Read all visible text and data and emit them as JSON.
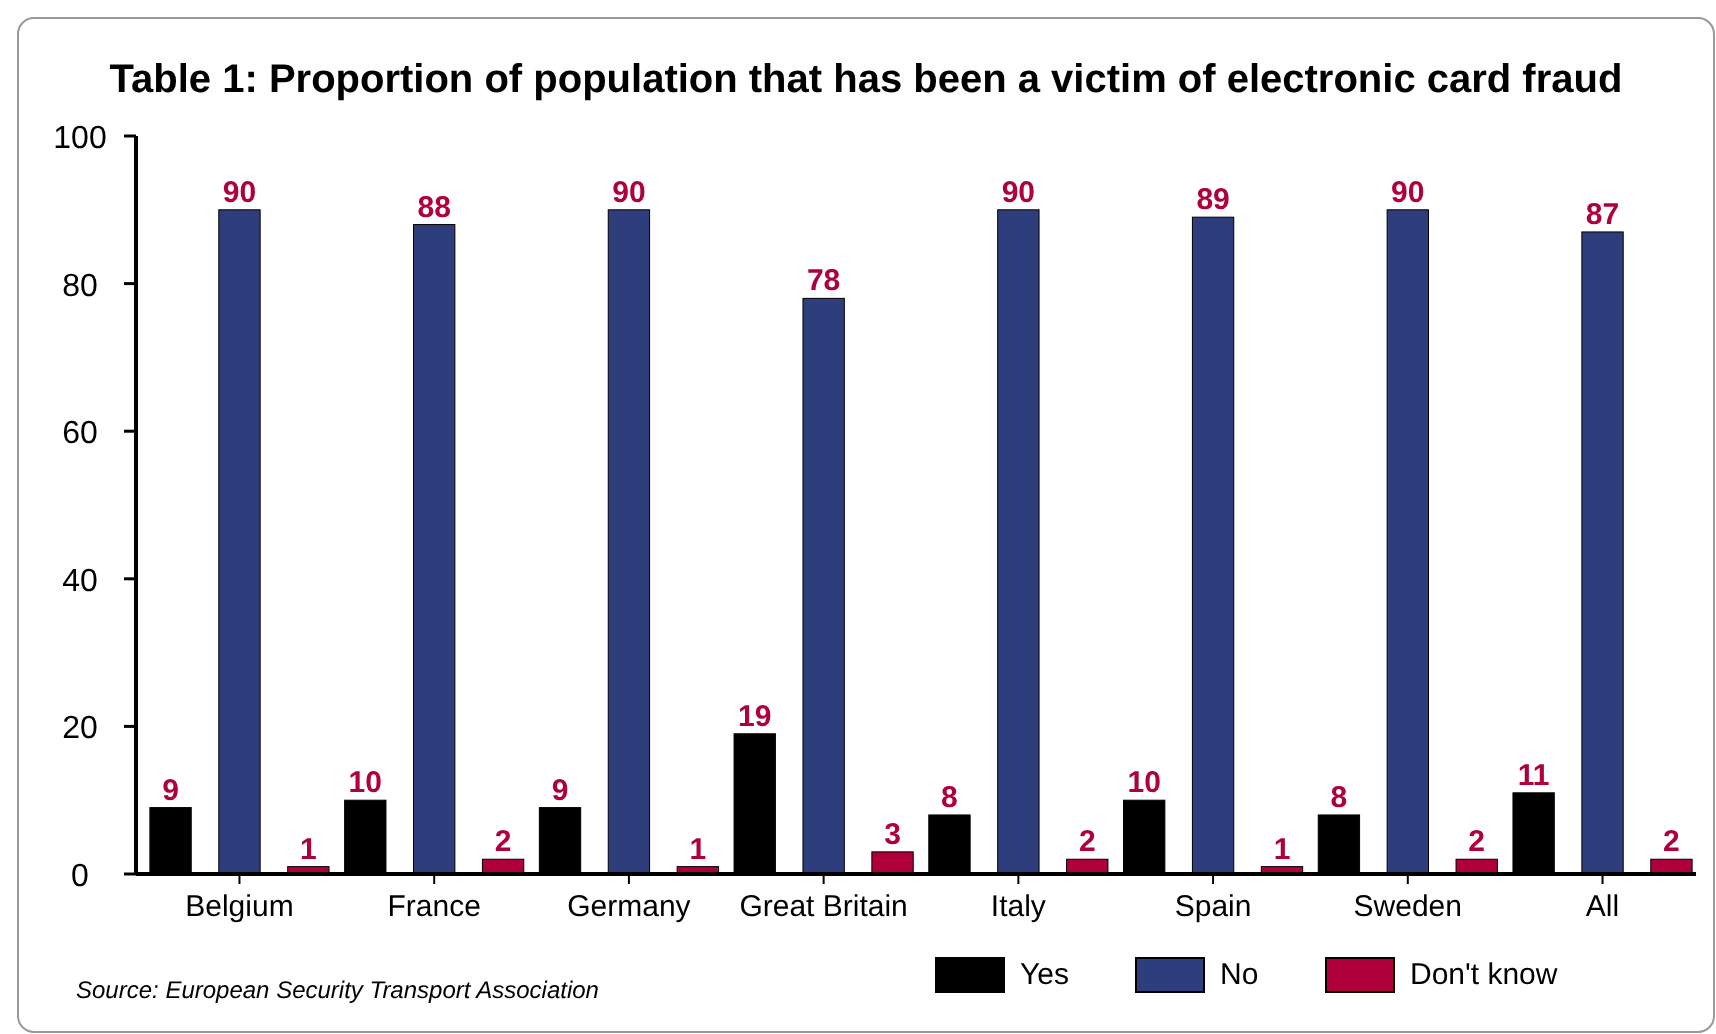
{
  "chart_data": {
    "type": "bar",
    "title": "Table 1: Proportion of population that has been a victim of electronic card fraud",
    "categories": [
      "Belgium",
      "France",
      "Germany",
      "Great Britain",
      "Italy",
      "Spain",
      "Sweden",
      "All"
    ],
    "series": [
      {
        "name": "Yes",
        "color": "#000000",
        "values": [
          9,
          10,
          9,
          19,
          8,
          10,
          8,
          11
        ]
      },
      {
        "name": "No",
        "color": "#2e3d7c",
        "values": [
          90,
          88,
          90,
          78,
          90,
          89,
          90,
          87
        ]
      },
      {
        "name": "Don't know",
        "color": "#b0003c",
        "values": [
          1,
          2,
          1,
          3,
          2,
          1,
          2,
          2
        ]
      }
    ],
    "ylim": [
      0,
      100
    ],
    "yticks": [
      0,
      20,
      40,
      60,
      80,
      100
    ],
    "grid": false,
    "legend": "bottom",
    "data_labels": true,
    "annotations": [
      "Source: European Security Transport Association"
    ]
  }
}
